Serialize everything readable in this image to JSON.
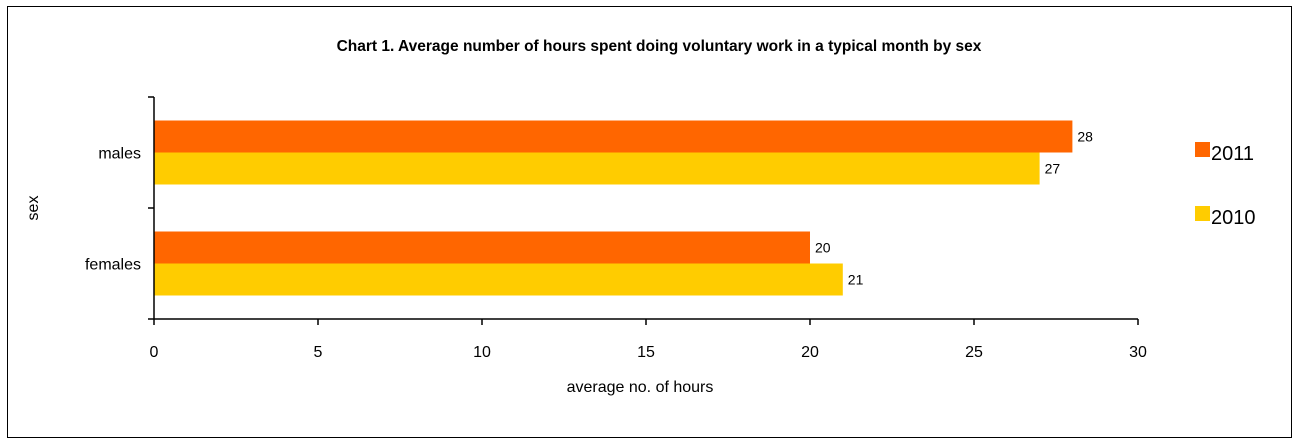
{
  "chart_data": {
    "type": "bar",
    "orientation": "horizontal",
    "title": "Chart 1. Average number of hours spent doing voluntary work in a typical month by sex",
    "xlabel": "average no. of hours",
    "ylabel": "sex",
    "categories": [
      "males",
      "females"
    ],
    "series": [
      {
        "name": "2011",
        "color": "#FF6600",
        "values": [
          28,
          20
        ]
      },
      {
        "name": "2010",
        "color": "#FFCC00",
        "values": [
          27,
          21
        ]
      }
    ],
    "xlim": [
      0,
      30
    ],
    "xticks": [
      "0",
      "5",
      "10",
      "15",
      "20",
      "25",
      "30"
    ],
    "grid": false,
    "legend_position": "right"
  }
}
